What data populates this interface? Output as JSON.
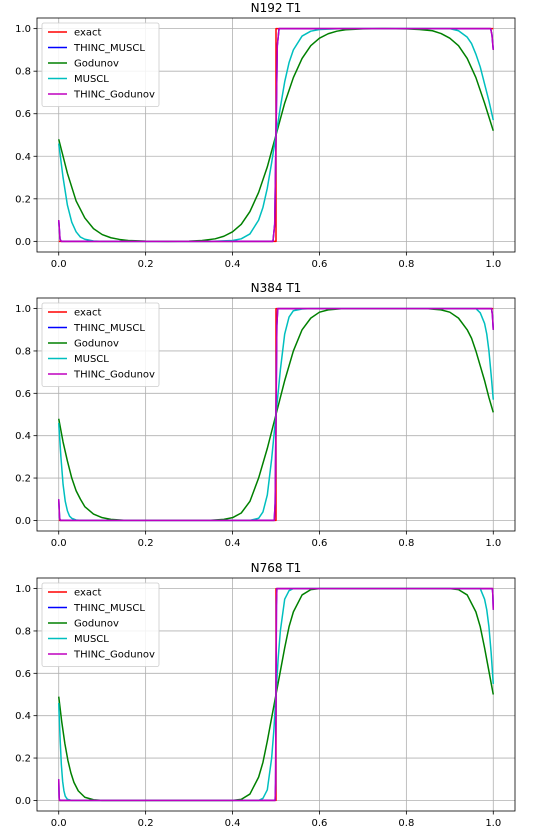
{
  "chart_data": [
    {
      "type": "line",
      "title": "N192 T1",
      "xlabel": "",
      "ylabel": "",
      "xlim": [
        -0.05,
        1.05
      ],
      "ylim": [
        -0.05,
        1.05
      ],
      "xticks": [
        0.0,
        0.2,
        0.4,
        0.6,
        0.8,
        1.0
      ],
      "xtick_labels": [
        "0.0",
        "0.2",
        "0.4",
        "0.6",
        "0.8",
        "1.0"
      ],
      "yticks": [
        0.0,
        0.2,
        0.4,
        0.6,
        0.8,
        1.0
      ],
      "ytick_labels": [
        "0.0",
        "0.2",
        "0.4",
        "0.6",
        "0.8",
        "1.0"
      ],
      "grid": true,
      "legend": "upper-left",
      "series": [
        {
          "name": "exact",
          "color": "#ff0000",
          "x": [
            0.0,
            0.5,
            0.5,
            1.0
          ],
          "y": [
            0.0,
            0.0,
            1.0,
            1.0
          ]
        },
        {
          "name": "THINC_MUSCL",
          "color": "#0000ff",
          "x": [
            0.0,
            0.003,
            0.006,
            0.493,
            0.497,
            0.5,
            0.503,
            0.507,
            0.994,
            0.997,
            1.0
          ],
          "y": [
            0.1,
            0.01,
            0.0,
            0.0,
            0.08,
            0.5,
            0.92,
            1.0,
            1.0,
            0.97,
            0.9
          ]
        },
        {
          "name": "Godunov",
          "color": "#008000",
          "x": [
            0.0,
            0.02,
            0.04,
            0.06,
            0.08,
            0.1,
            0.12,
            0.14,
            0.16,
            0.2,
            0.25,
            0.3,
            0.33,
            0.36,
            0.38,
            0.4,
            0.42,
            0.44,
            0.46,
            0.48,
            0.5,
            0.52,
            0.54,
            0.56,
            0.58,
            0.6,
            0.62,
            0.64,
            0.66,
            0.7,
            0.75,
            0.8,
            0.83,
            0.86,
            0.88,
            0.9,
            0.92,
            0.94,
            0.96,
            0.98,
            1.0
          ],
          "y": [
            0.48,
            0.32,
            0.19,
            0.11,
            0.06,
            0.032,
            0.017,
            0.009,
            0.004,
            0.001,
            0.0,
            0.001,
            0.004,
            0.012,
            0.024,
            0.045,
            0.08,
            0.14,
            0.23,
            0.35,
            0.5,
            0.65,
            0.77,
            0.86,
            0.92,
            0.955,
            0.976,
            0.988,
            0.995,
            0.999,
            1.0,
            0.999,
            0.996,
            0.99,
            0.977,
            0.955,
            0.92,
            0.86,
            0.77,
            0.65,
            0.52
          ]
        },
        {
          "name": "MUSCL",
          "color": "#00bfbf",
          "x": [
            0.0,
            0.01,
            0.02,
            0.03,
            0.04,
            0.05,
            0.06,
            0.08,
            0.1,
            0.35,
            0.4,
            0.42,
            0.44,
            0.46,
            0.47,
            0.48,
            0.49,
            0.5,
            0.51,
            0.52,
            0.53,
            0.54,
            0.56,
            0.58,
            0.6,
            0.65,
            0.9,
            0.92,
            0.94,
            0.95,
            0.96,
            0.97,
            0.98,
            0.99,
            1.0
          ],
          "y": [
            0.46,
            0.3,
            0.17,
            0.09,
            0.045,
            0.02,
            0.01,
            0.002,
            0.0,
            0.0,
            0.004,
            0.012,
            0.035,
            0.1,
            0.16,
            0.25,
            0.37,
            0.5,
            0.63,
            0.75,
            0.84,
            0.9,
            0.965,
            0.988,
            0.996,
            1.0,
            1.0,
            0.99,
            0.96,
            0.93,
            0.88,
            0.82,
            0.74,
            0.66,
            0.57
          ]
        },
        {
          "name": "THINC_Godunov",
          "color": "#bf00bf",
          "x": [
            0.0,
            0.003,
            0.006,
            0.493,
            0.497,
            0.5,
            0.503,
            0.507,
            0.994,
            0.997,
            1.0
          ],
          "y": [
            0.1,
            0.01,
            0.0,
            0.0,
            0.08,
            0.5,
            0.92,
            1.0,
            1.0,
            0.97,
            0.9
          ]
        }
      ]
    },
    {
      "type": "line",
      "title": "N384 T1",
      "xlabel": "",
      "ylabel": "",
      "xlim": [
        -0.05,
        1.05
      ],
      "ylim": [
        -0.05,
        1.05
      ],
      "xticks": [
        0.0,
        0.2,
        0.4,
        0.6,
        0.8,
        1.0
      ],
      "xtick_labels": [
        "0.0",
        "0.2",
        "0.4",
        "0.6",
        "0.8",
        "1.0"
      ],
      "yticks": [
        0.0,
        0.2,
        0.4,
        0.6,
        0.8,
        1.0
      ],
      "ytick_labels": [
        "0.0",
        "0.2",
        "0.4",
        "0.6",
        "0.8",
        "1.0"
      ],
      "grid": true,
      "legend": "upper-left",
      "series": [
        {
          "name": "exact",
          "color": "#ff0000",
          "x": [
            0.0,
            0.5,
            0.5,
            1.0
          ],
          "y": [
            0.0,
            0.0,
            1.0,
            1.0
          ]
        },
        {
          "name": "THINC_MUSCL",
          "color": "#0000ff",
          "x": [
            0.0,
            0.002,
            0.004,
            0.496,
            0.498,
            0.5,
            0.502,
            0.504,
            0.996,
            0.998,
            1.0
          ],
          "y": [
            0.1,
            0.01,
            0.0,
            0.0,
            0.08,
            0.5,
            0.92,
            1.0,
            1.0,
            0.97,
            0.9
          ]
        },
        {
          "name": "Godunov",
          "color": "#008000",
          "x": [
            0.0,
            0.01,
            0.02,
            0.03,
            0.04,
            0.05,
            0.06,
            0.08,
            0.1,
            0.12,
            0.15,
            0.35,
            0.38,
            0.4,
            0.42,
            0.44,
            0.46,
            0.48,
            0.5,
            0.52,
            0.54,
            0.56,
            0.58,
            0.6,
            0.62,
            0.65,
            0.85,
            0.88,
            0.9,
            0.92,
            0.94,
            0.95,
            0.96,
            0.97,
            0.98,
            0.99,
            1.0
          ],
          "y": [
            0.48,
            0.37,
            0.28,
            0.2,
            0.14,
            0.1,
            0.065,
            0.03,
            0.013,
            0.005,
            0.001,
            0.001,
            0.005,
            0.013,
            0.035,
            0.09,
            0.2,
            0.34,
            0.5,
            0.66,
            0.8,
            0.9,
            0.955,
            0.983,
            0.994,
            0.999,
            0.999,
            0.994,
            0.983,
            0.955,
            0.9,
            0.86,
            0.8,
            0.73,
            0.66,
            0.58,
            0.51
          ]
        },
        {
          "name": "MUSCL",
          "color": "#00bfbf",
          "x": [
            0.0,
            0.005,
            0.01,
            0.015,
            0.02,
            0.025,
            0.03,
            0.04,
            0.05,
            0.44,
            0.46,
            0.47,
            0.48,
            0.49,
            0.5,
            0.51,
            0.52,
            0.53,
            0.54,
            0.56,
            0.58,
            0.96,
            0.97,
            0.98,
            0.985,
            0.99,
            0.995,
            1.0
          ],
          "y": [
            0.46,
            0.3,
            0.17,
            0.09,
            0.045,
            0.02,
            0.01,
            0.002,
            0.0,
            0.0,
            0.01,
            0.04,
            0.12,
            0.29,
            0.5,
            0.71,
            0.88,
            0.96,
            0.99,
            0.998,
            1.0,
            1.0,
            0.98,
            0.93,
            0.88,
            0.8,
            0.69,
            0.57
          ]
        },
        {
          "name": "THINC_Godunov",
          "color": "#bf00bf",
          "x": [
            0.0,
            0.002,
            0.004,
            0.496,
            0.498,
            0.5,
            0.502,
            0.504,
            0.996,
            0.998,
            1.0
          ],
          "y": [
            0.1,
            0.01,
            0.0,
            0.0,
            0.08,
            0.5,
            0.92,
            1.0,
            1.0,
            0.97,
            0.9
          ]
        }
      ]
    },
    {
      "type": "line",
      "title": "N768 T1",
      "xlabel": "",
      "ylabel": "",
      "xlim": [
        -0.05,
        1.05
      ],
      "ylim": [
        -0.05,
        1.05
      ],
      "xticks": [
        0.0,
        0.2,
        0.4,
        0.6,
        0.8,
        1.0
      ],
      "xtick_labels": [
        "0.0",
        "0.2",
        "0.4",
        "0.6",
        "0.8",
        "1.0"
      ],
      "yticks": [
        0.0,
        0.2,
        0.4,
        0.6,
        0.8,
        1.0
      ],
      "ytick_labels": [
        "0.0",
        "0.2",
        "0.4",
        "0.6",
        "0.8",
        "1.0"
      ],
      "grid": true,
      "legend": "upper-left",
      "series": [
        {
          "name": "exact",
          "color": "#ff0000",
          "x": [
            0.0,
            0.5,
            0.5,
            1.0
          ],
          "y": [
            0.0,
            0.0,
            1.0,
            1.0
          ]
        },
        {
          "name": "THINC_MUSCL",
          "color": "#0000ff",
          "x": [
            0.0,
            0.001,
            0.002,
            0.498,
            0.499,
            0.5,
            0.501,
            0.502,
            0.998,
            0.999,
            1.0
          ],
          "y": [
            0.1,
            0.01,
            0.0,
            0.0,
            0.08,
            0.5,
            0.92,
            1.0,
            1.0,
            0.97,
            0.9
          ]
        },
        {
          "name": "Godunov",
          "color": "#008000",
          "x": [
            0.0,
            0.007,
            0.014,
            0.021,
            0.028,
            0.035,
            0.045,
            0.06,
            0.08,
            0.1,
            0.4,
            0.42,
            0.44,
            0.46,
            0.47,
            0.48,
            0.49,
            0.5,
            0.51,
            0.52,
            0.53,
            0.54,
            0.56,
            0.58,
            0.6,
            0.9,
            0.92,
            0.94,
            0.96,
            0.97,
            0.98,
            0.99,
            1.0
          ],
          "y": [
            0.49,
            0.37,
            0.27,
            0.19,
            0.13,
            0.085,
            0.045,
            0.015,
            0.003,
            0.0,
            0.0,
            0.005,
            0.03,
            0.11,
            0.18,
            0.28,
            0.39,
            0.5,
            0.61,
            0.72,
            0.82,
            0.89,
            0.97,
            0.995,
            1.0,
            1.0,
            0.995,
            0.97,
            0.89,
            0.82,
            0.72,
            0.61,
            0.5
          ]
        },
        {
          "name": "MUSCL",
          "color": "#00bfbf",
          "x": [
            0.0,
            0.003,
            0.006,
            0.009,
            0.012,
            0.015,
            0.02,
            0.03,
            0.46,
            0.47,
            0.48,
            0.49,
            0.495,
            0.5,
            0.505,
            0.51,
            0.52,
            0.53,
            0.54,
            0.97,
            0.98,
            0.985,
            0.99,
            0.995,
            1.0
          ],
          "y": [
            0.46,
            0.3,
            0.17,
            0.09,
            0.045,
            0.02,
            0.005,
            0.0,
            0.0,
            0.01,
            0.05,
            0.2,
            0.33,
            0.5,
            0.67,
            0.8,
            0.95,
            0.99,
            1.0,
            1.0,
            0.95,
            0.9,
            0.82,
            0.7,
            0.55
          ]
        },
        {
          "name": "THINC_Godunov",
          "color": "#bf00bf",
          "x": [
            0.0,
            0.001,
            0.002,
            0.498,
            0.499,
            0.5,
            0.501,
            0.502,
            0.998,
            0.999,
            1.0
          ],
          "y": [
            0.1,
            0.01,
            0.0,
            0.0,
            0.08,
            0.5,
            0.92,
            1.0,
            1.0,
            0.97,
            0.9
          ]
        }
      ]
    }
  ]
}
